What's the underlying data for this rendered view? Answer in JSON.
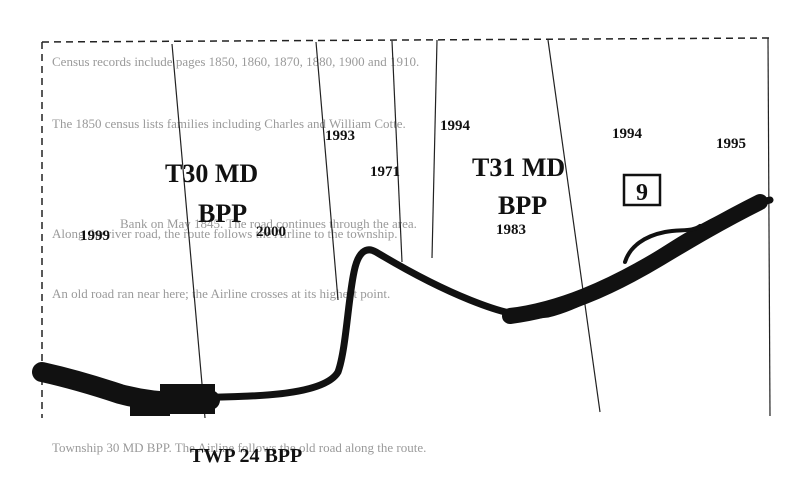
{
  "map": {
    "township_left": {
      "line1": "T30 MD",
      "line2": "BPP"
    },
    "township_right": {
      "line1": "T31 MD",
      "line2": "BPP"
    },
    "township_bottom": "TWP 24 BPP",
    "route_marker": "9",
    "years": [
      "1999",
      "2000",
      "1993",
      "1971",
      "1994",
      "1983",
      "1994",
      "1995"
    ]
  },
  "bleed_text": [
    "Census records include pages 1850, 1860, 1870, 1880, 1900 and 1910.",
    "The 1850 census lists families including Charles and William Cotte.",
    "Along the river road, the route follows the Airline to the township.",
    "Bank on May 1845. The road continues through the area.",
    "An old road ran near here; the Airline crosses at its highest point.",
    "Township 30 MD BPP. The Airline follows the old road along the route."
  ],
  "colors": {
    "ink": "#111111",
    "ghost": "#9a9a9a",
    "paper": "#ffffff"
  }
}
